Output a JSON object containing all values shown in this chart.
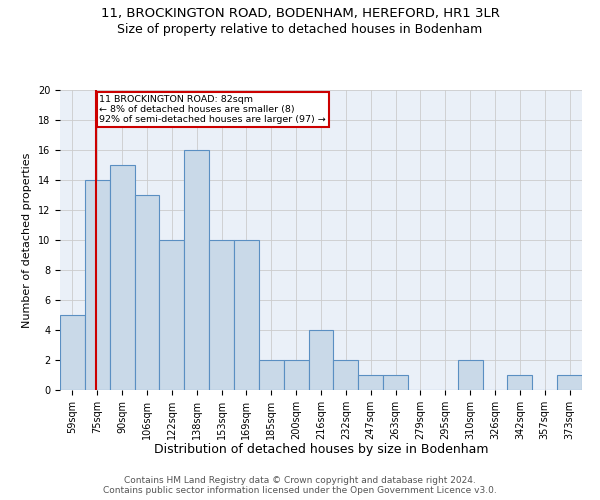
{
  "title": "11, BROCKINGTON ROAD, BODENHAM, HEREFORD, HR1 3LR",
  "subtitle": "Size of property relative to detached houses in Bodenham",
  "xlabel": "Distribution of detached houses by size in Bodenham",
  "ylabel": "Number of detached properties",
  "categories": [
    "59sqm",
    "75sqm",
    "90sqm",
    "106sqm",
    "122sqm",
    "138sqm",
    "153sqm",
    "169sqm",
    "185sqm",
    "200sqm",
    "216sqm",
    "232sqm",
    "247sqm",
    "263sqm",
    "279sqm",
    "295sqm",
    "310sqm",
    "326sqm",
    "342sqm",
    "357sqm",
    "373sqm"
  ],
  "values": [
    5,
    14,
    15,
    13,
    10,
    16,
    10,
    10,
    2,
    2,
    4,
    2,
    1,
    1,
    0,
    0,
    2,
    0,
    1,
    0,
    1
  ],
  "bar_color": "#c9d9e8",
  "bar_edgecolor": "#5a8fc2",
  "bar_linewidth": 0.8,
  "red_line_color": "#cc0000",
  "annotation_text": "11 BROCKINGTON ROAD: 82sqm\n← 8% of detached houses are smaller (8)\n92% of semi-detached houses are larger (97) →",
  "annotation_box_edgecolor": "#cc0000",
  "ylim": [
    0,
    20
  ],
  "yticks": [
    0,
    2,
    4,
    6,
    8,
    10,
    12,
    14,
    16,
    18,
    20
  ],
  "grid_color": "#cccccc",
  "background_color": "#eaf0f8",
  "footnote": "Contains HM Land Registry data © Crown copyright and database right 2024.\nContains public sector information licensed under the Open Government Licence v3.0.",
  "title_fontsize": 9.5,
  "subtitle_fontsize": 9,
  "ylabel_fontsize": 8,
  "xlabel_fontsize": 9,
  "tick_fontsize": 7,
  "footnote_fontsize": 6.5
}
